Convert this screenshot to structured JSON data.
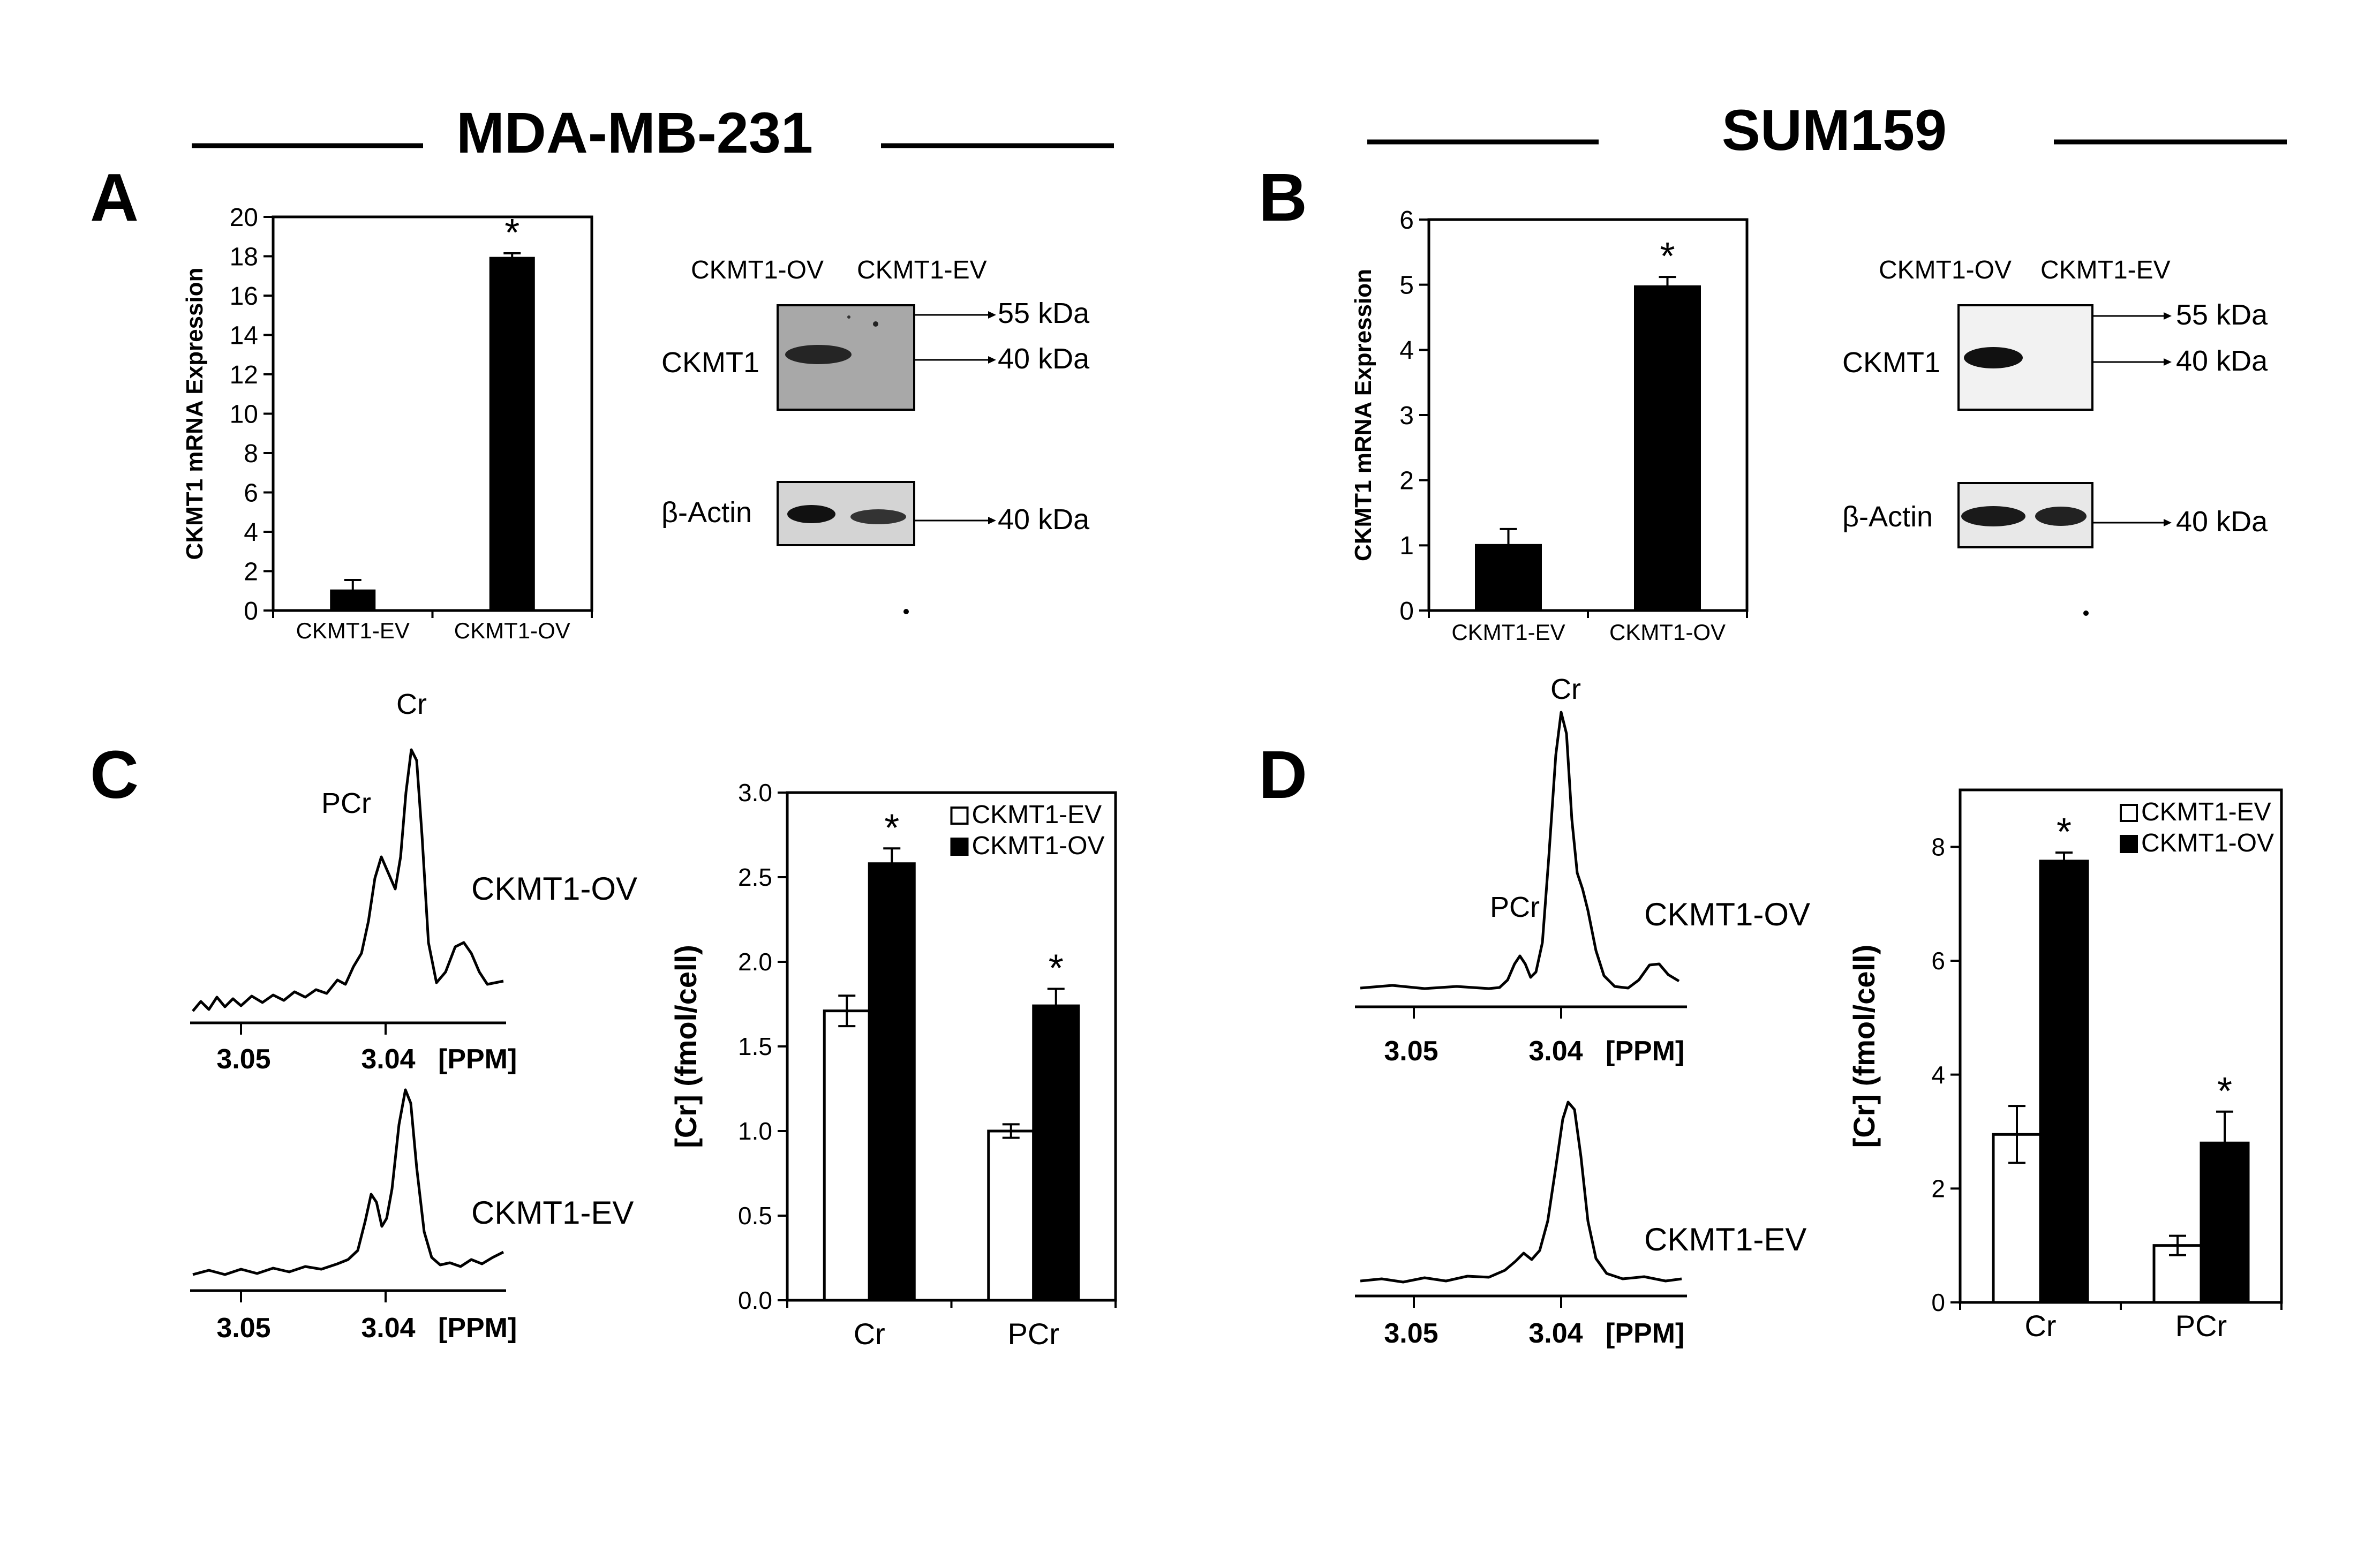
{
  "header": {
    "left_title": "MDA-MB-231",
    "right_title": "SUM159"
  },
  "panels": {
    "a": "A",
    "b": "B",
    "c": "C",
    "d": "D"
  },
  "western_a": {
    "lane_labels": [
      "CKMT1-OV",
      "CKMT1-EV"
    ],
    "protein_top": "CKMT1",
    "protein_bottom": "β-Actin",
    "marker_55": "55 kDa",
    "marker_40_top": "40 kDa",
    "marker_40_bottom": "40 kDa"
  },
  "western_b": {
    "lane_labels": [
      "CKMT1-OV",
      "CKMT1-EV"
    ],
    "protein_top": "CKMT1",
    "protein_bottom": "β-Actin",
    "marker_55": "55 kDa",
    "marker_40_top": "40 kDa",
    "marker_40_bottom": "40 kDa"
  },
  "spectra_c": {
    "peak_cr": "Cr",
    "peak_pcr": "PCr",
    "label_top": "CKMT1-OV",
    "label_bottom": "CKMT1-EV",
    "ticks": [
      "3.05",
      "3.04"
    ],
    "unit": "[PPM]"
  },
  "spectra_d": {
    "peak_cr": "Cr",
    "peak_pcr": "PCr",
    "label_top": "CKMT1-OV",
    "label_bottom": "CKMT1-EV",
    "ticks": [
      "3.05",
      "3.04"
    ],
    "unit": "[PPM]"
  },
  "chart_data": [
    {
      "id": "a",
      "type": "bar",
      "categories": [
        "CKMT1-EV",
        "CKMT1-OV"
      ],
      "values": [
        1.0,
        17.9
      ],
      "errors": [
        0.55,
        0.25
      ],
      "significance": [
        "",
        "*"
      ],
      "ylabel": "CKMT1 mRNA Expression",
      "ylim": [
        0,
        20
      ],
      "yticks": [
        0,
        2,
        4,
        6,
        8,
        10,
        12,
        14,
        16,
        18,
        20
      ],
      "color": "#000000"
    },
    {
      "id": "b",
      "type": "bar",
      "categories": [
        "CKMT1-EV",
        "CKMT1-OV"
      ],
      "values": [
        1.0,
        4.97
      ],
      "errors": [
        0.25,
        0.15
      ],
      "significance": [
        "",
        "*"
      ],
      "ylabel": "CKMT1 mRNA Expression",
      "ylim": [
        0,
        6
      ],
      "yticks": [
        0,
        1,
        2,
        3,
        4,
        5,
        6
      ],
      "color": "#000000"
    },
    {
      "id": "c",
      "type": "bar",
      "categories": [
        "Cr",
        "PCr"
      ],
      "series": [
        {
          "name": "CKMT1-EV",
          "values": [
            1.71,
            1.0
          ],
          "errors": [
            0.09,
            0.04
          ],
          "color": "#ffffff"
        },
        {
          "name": "CKMT1-OV",
          "values": [
            2.58,
            1.74
          ],
          "errors": [
            0.09,
            0.1
          ],
          "color": "#000000"
        }
      ],
      "significance": [
        "*",
        "*"
      ],
      "ylabel": "[Cr] (fmol/cell)",
      "ylim": [
        0,
        3
      ],
      "yticks": [
        "0.0",
        "0.5",
        "1.0",
        "1.5",
        "2.0",
        "2.5",
        "3.0"
      ],
      "legend": "top-right"
    },
    {
      "id": "d",
      "type": "bar",
      "categories": [
        "Cr",
        "PCr"
      ],
      "series": [
        {
          "name": "CKMT1-EV",
          "values": [
            2.95,
            1.0
          ],
          "errors": [
            0.5,
            0.17
          ],
          "color": "#ffffff"
        },
        {
          "name": "CKMT1-OV",
          "values": [
            7.75,
            2.8
          ],
          "errors": [
            0.15,
            0.55
          ],
          "color": "#000000"
        }
      ],
      "significance": [
        "*",
        "*"
      ],
      "ylabel": "[Cr] (fmol/cell)",
      "ylim": [
        0,
        9
      ],
      "yticks": [
        "0",
        "2",
        "4",
        "6",
        "8"
      ],
      "legend": "top-right"
    }
  ]
}
